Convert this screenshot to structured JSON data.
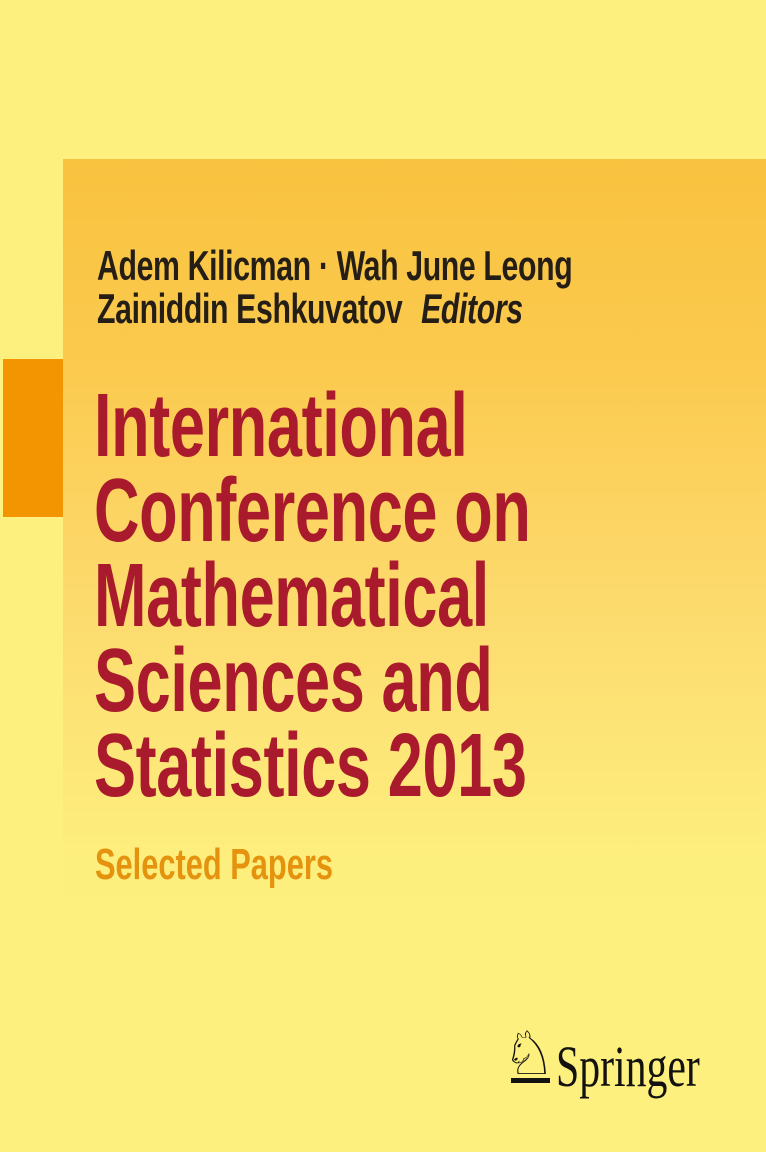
{
  "book_cover": {
    "authors": {
      "line1": "Adem Kilicman · Wah June Leong",
      "line2_name": "Zainiddin Eshkuvatov",
      "editors_label": "Editors"
    },
    "title": {
      "full": "International Conference on Mathematical Sciences and Statistics 2013",
      "lines": [
        "International",
        "Conference on",
        "Mathematical",
        "Sciences and",
        "Statistics 2013"
      ]
    },
    "subtitle": "Selected Papers",
    "publisher": {
      "name": "Springer",
      "logo_icon": "springer-horse-knight-icon",
      "horse_glyph": "♘"
    },
    "colors": {
      "background": "#fdf07e",
      "panel_gradient_top": "#f9c23f",
      "panel_gradient_bottom": "#fdf07e",
      "accent_square": "#f29500",
      "title_text": "#a91b2c",
      "subtitle_text": "#e5930f",
      "author_text": "#241e16",
      "publisher_text": "#141210"
    }
  }
}
